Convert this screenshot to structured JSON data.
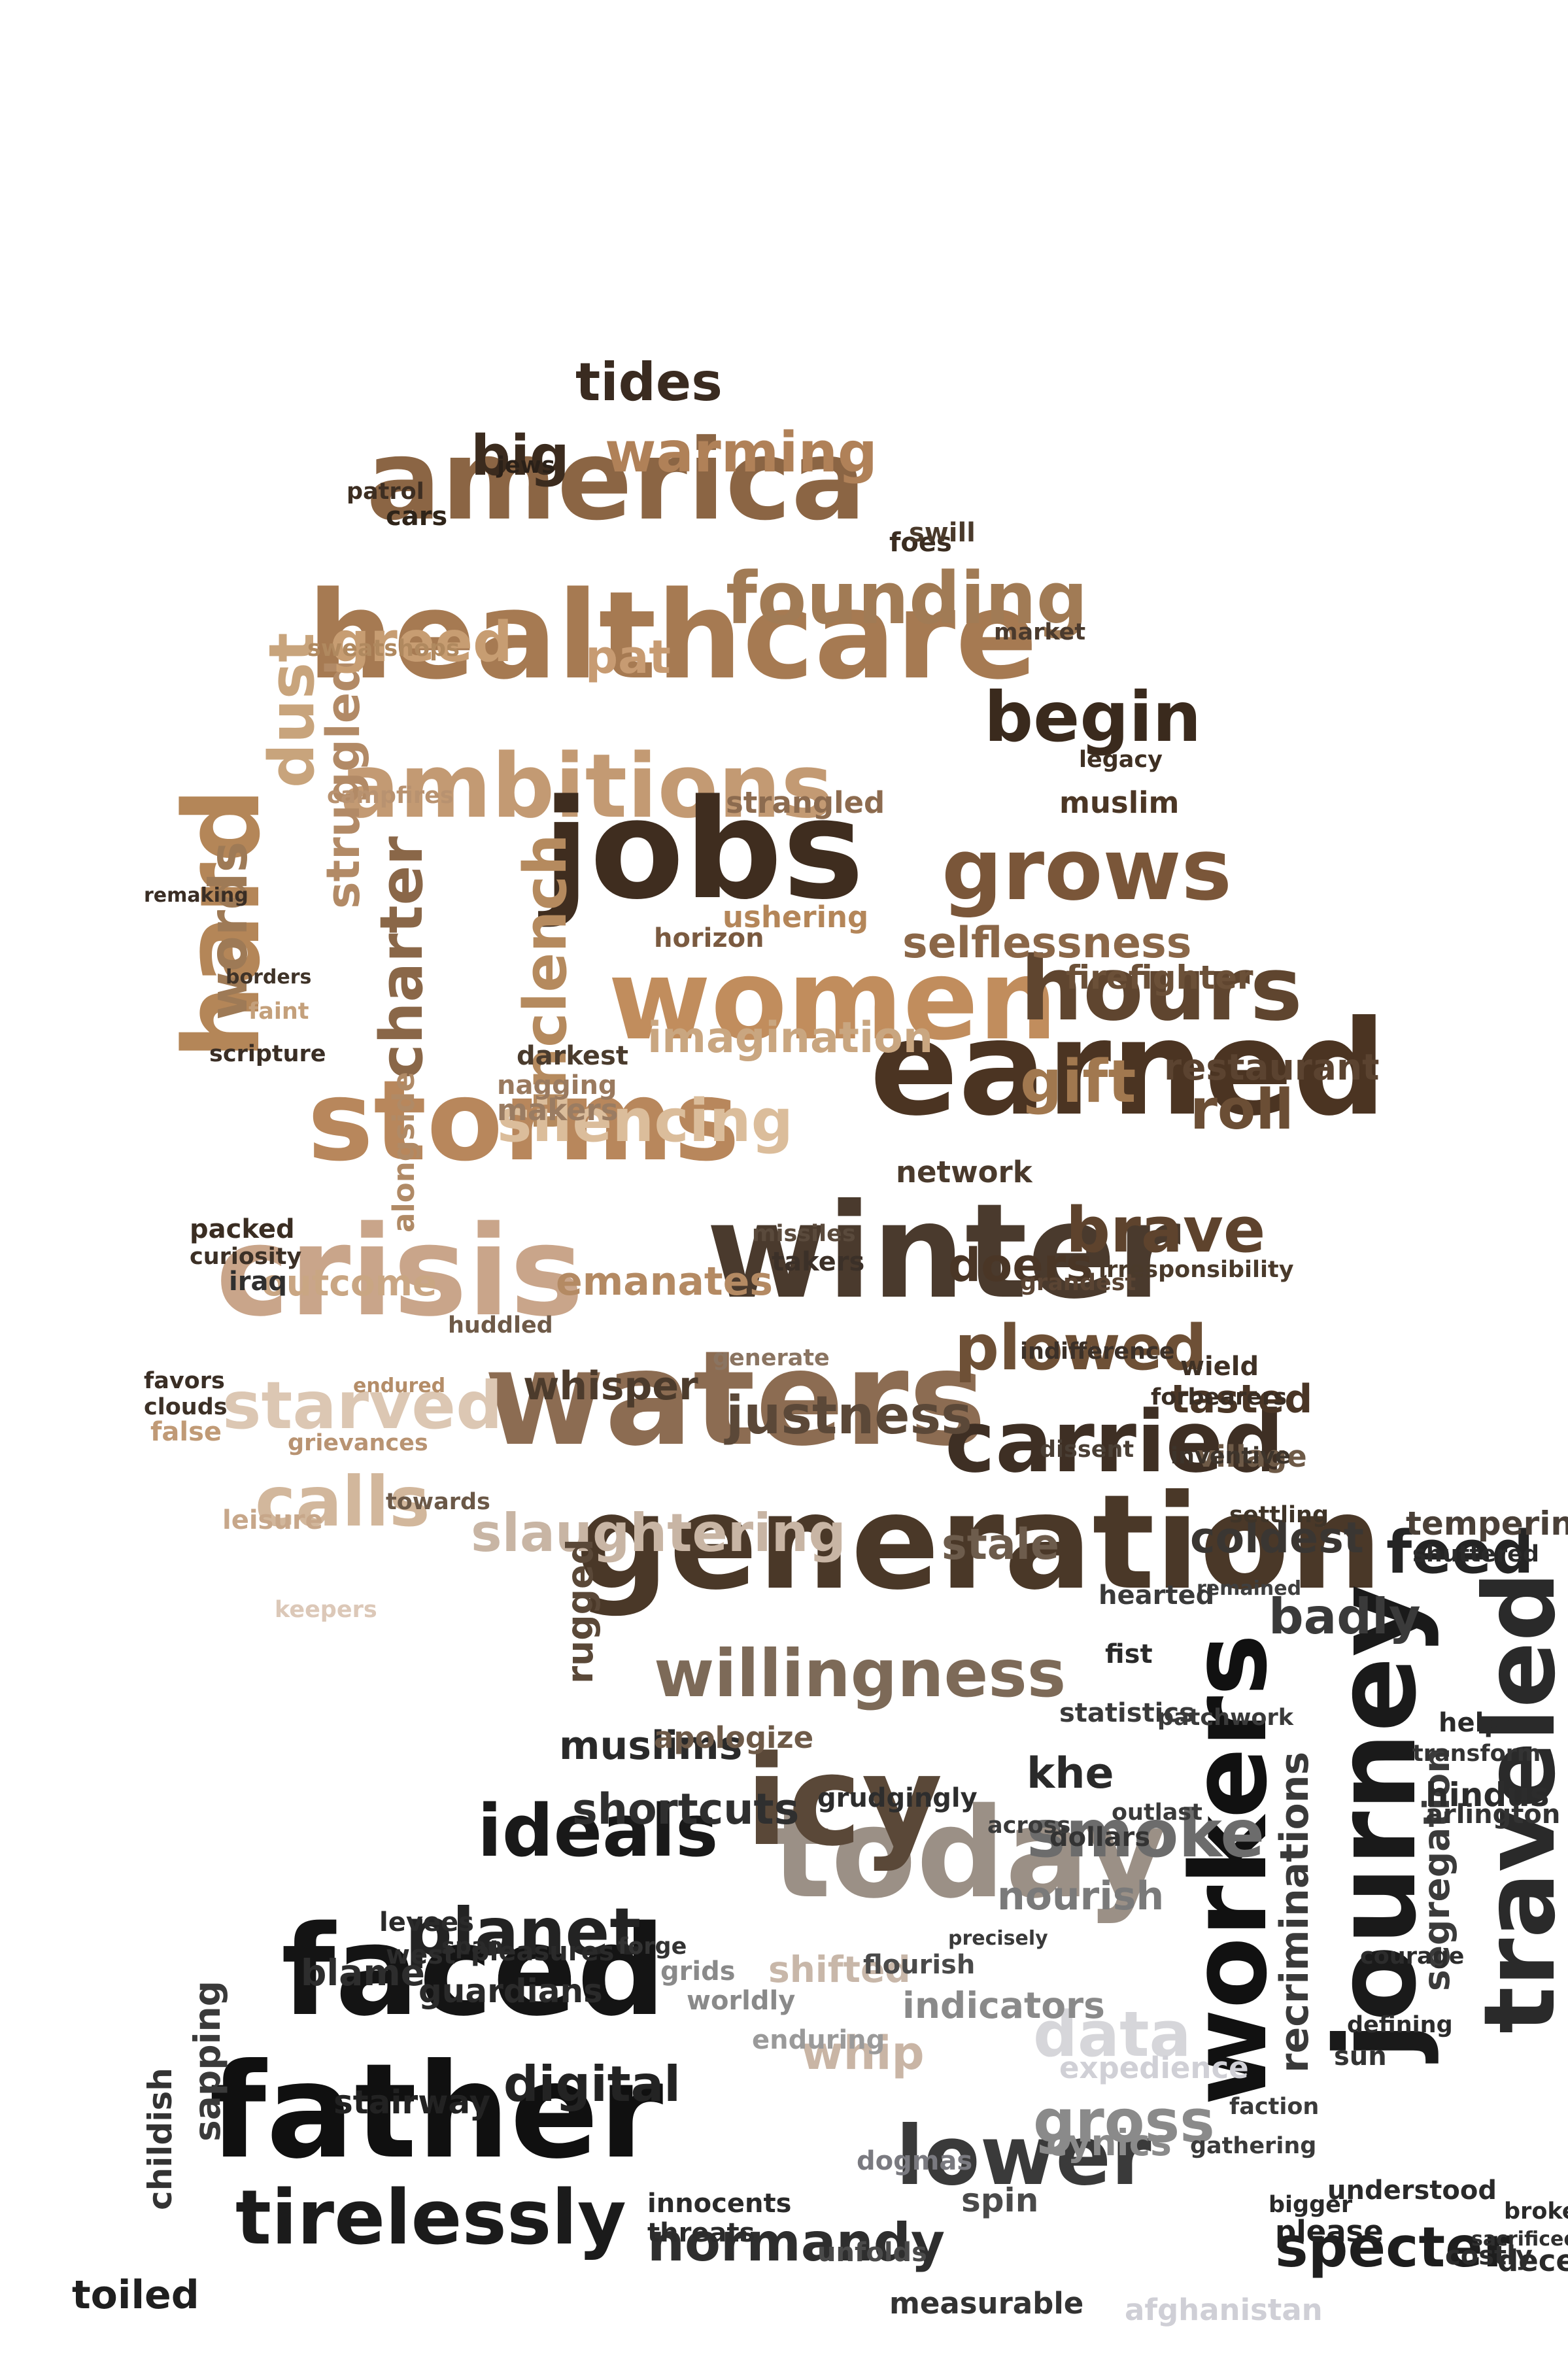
{
  "image": {
    "kind": "word cloud portrait",
    "background": "#ffffff",
    "palette": [
      "#0b0b0b",
      "#2a221b",
      "#4a3727",
      "#6a4d33",
      "#8b6a4c",
      "#b08458",
      "#c79c70",
      "#d9b896",
      "#b9b9c0"
    ]
  },
  "words": [
    {
      "text": "healthcare",
      "color": "#a67a52"
    },
    {
      "text": "america",
      "color": "#8b6544"
    },
    {
      "text": "generation",
      "color": "#4a3828"
    },
    {
      "text": "earned",
      "color": "#4b3422"
    },
    {
      "text": "storms",
      "color": "#b8875c"
    },
    {
      "text": "crisis",
      "color": "#c9a58a"
    },
    {
      "text": "winter",
      "color": "#4a3a2d"
    },
    {
      "text": "waters",
      "color": "#8c6c52"
    },
    {
      "text": "jobs",
      "color": "#3f2d1f"
    },
    {
      "text": "women",
      "color": "#c18d5d"
    },
    {
      "text": "faced",
      "color": "#141414"
    },
    {
      "text": "father",
      "color": "#101010"
    },
    {
      "text": "today",
      "color": "#9b9086"
    },
    {
      "text": "workers",
      "color": "#111111"
    },
    {
      "text": "journey",
      "color": "#1a1a1a"
    },
    {
      "text": "traveled",
      "color": "#2a2a2a"
    },
    {
      "text": "ambitions",
      "color": "#c39a73"
    },
    {
      "text": "hard",
      "color": "#b48658"
    },
    {
      "text": "icy",
      "color": "#5a4838"
    },
    {
      "text": "ideals",
      "color": "#191919"
    },
    {
      "text": "lower",
      "color": "#3a3a3a"
    },
    {
      "text": "tirelessly",
      "color": "#1b1b1b"
    },
    {
      "text": "carried",
      "color": "#3e2f24"
    },
    {
      "text": "hours",
      "color": "#5f452f"
    },
    {
      "text": "grows",
      "color": "#7a5639"
    },
    {
      "text": "founding",
      "color": "#a17b55"
    },
    {
      "text": "begin",
      "color": "#3a2a1d"
    },
    {
      "text": "willingness",
      "color": "#7d6a58"
    },
    {
      "text": "smoke",
      "color": "#6c6c6c"
    },
    {
      "text": "planet",
      "color": "#232323"
    },
    {
      "text": "plowed",
      "color": "#6e5036"
    },
    {
      "text": "brave",
      "color": "#5e432d"
    },
    {
      "text": "gift",
      "color": "#a1784f"
    },
    {
      "text": "roll",
      "color": "#6b4e35"
    },
    {
      "text": "starved",
      "color": "#dcc7b3"
    },
    {
      "text": "calls",
      "color": "#d2b79c"
    },
    {
      "text": "charter",
      "color": "#8a6748"
    },
    {
      "text": "unclench",
      "color": "#b58a5e"
    },
    {
      "text": "dust",
      "color": "#c8a47c"
    },
    {
      "text": "words",
      "color": "#9e7a56"
    },
    {
      "text": "struggled",
      "color": "#b28a66"
    },
    {
      "text": "greed",
      "color": "#c79d72"
    },
    {
      "text": "big",
      "color": "#3b2b1e"
    },
    {
      "text": "warming",
      "color": "#b08158"
    },
    {
      "text": "tides",
      "color": "#3a2b20"
    },
    {
      "text": "silencing",
      "color": "#dbbd9b"
    },
    {
      "text": "slaughtering",
      "color": "#c8b5a4"
    },
    {
      "text": "justness",
      "color": "#5b4838"
    },
    {
      "text": "whisper",
      "color": "#4c3b2c"
    },
    {
      "text": "feed",
      "color": "#242424"
    },
    {
      "text": "coldest",
      "color": "#3a3632"
    },
    {
      "text": "badly",
      "color": "#3a3a3a"
    },
    {
      "text": "stale",
      "color": "#6d5c4c"
    },
    {
      "text": "digital",
      "color": "#232323"
    },
    {
      "text": "normandy",
      "color": "#2e2e2e"
    },
    {
      "text": "specter",
      "color": "#1e1e1e"
    },
    {
      "text": "gross",
      "color": "#8a8a8a"
    },
    {
      "text": "data",
      "color": "#d6d6da"
    },
    {
      "text": "muslims",
      "color": "#2a2a2a"
    },
    {
      "text": "shortcuts",
      "color": "#2f2f2f"
    },
    {
      "text": "recriminations",
      "color": "#3a3a3a"
    },
    {
      "text": "segregation",
      "color": "#3b3b3b"
    },
    {
      "text": "selflessness",
      "color": "#8b6748"
    },
    {
      "text": "imagination",
      "color": "#c9a680"
    },
    {
      "text": "emanates",
      "color": "#b48a63"
    },
    {
      "text": "outcome",
      "color": "#c9a683"
    },
    {
      "text": "doers",
      "color": "#4a3626"
    },
    {
      "text": "firefighter",
      "color": "#6b5038"
    },
    {
      "text": "restaurant",
      "color": "#5b4330"
    },
    {
      "text": "tasted",
      "color": "#4a3626"
    },
    {
      "text": "village",
      "color": "#6e5a47"
    },
    {
      "text": "tempering",
      "color": "#4a4038"
    },
    {
      "text": "hindus",
      "color": "#2c2c2c"
    },
    {
      "text": "arlington",
      "color": "#333333"
    },
    {
      "text": "nourish",
      "color": "#7a7a7a"
    },
    {
      "text": "indicators",
      "color": "#8a8a8a"
    },
    {
      "text": "expedience",
      "color": "#d0d0d6"
    },
    {
      "text": "cynics",
      "color": "#8a8a8a"
    },
    {
      "text": "dogmas",
      "color": "#7a7a80"
    },
    {
      "text": "afghanistan",
      "color": "#cfcfd6"
    },
    {
      "text": "measurable",
      "color": "#333333"
    },
    {
      "text": "innocents",
      "color": "#2a2a2a"
    },
    {
      "text": "threats",
      "color": "#2b2b2b"
    },
    {
      "text": "guardians",
      "color": "#2a2a2a"
    },
    {
      "text": "blame",
      "color": "#2d2d2d"
    },
    {
      "text": "stairway",
      "color": "#222222"
    },
    {
      "text": "sapping",
      "color": "#3a3a3a"
    },
    {
      "text": "childish",
      "color": "#333333"
    },
    {
      "text": "toiled",
      "color": "#1f1f1f"
    },
    {
      "text": "whip",
      "color": "#c9b5a5"
    },
    {
      "text": "shifted",
      "color": "#c8b7a9"
    },
    {
      "text": "apologize",
      "color": "#6e5a48"
    },
    {
      "text": "rugged",
      "color": "#5a4838"
    },
    {
      "text": "khe",
      "color": "#2a2a2a"
    },
    {
      "text": "grudgingly",
      "color": "#2d2d2d"
    },
    {
      "text": "spin",
      "color": "#4a4a4a"
    },
    {
      "text": "unfolds",
      "color": "#4a4a4a"
    },
    {
      "text": "patrol",
      "color": "#3d2e22"
    },
    {
      "text": "cars",
      "color": "#2f2419"
    },
    {
      "text": "jews",
      "color": "#2a2018"
    },
    {
      "text": "foes",
      "color": "#3a2c20"
    },
    {
      "text": "swill",
      "color": "#4a3a2b"
    },
    {
      "text": "market",
      "color": "#4a3a2d"
    },
    {
      "text": "legacy",
      "color": "#3f3023"
    },
    {
      "text": "muslim",
      "color": "#4b3625"
    },
    {
      "text": "strangled",
      "color": "#8c6b4f"
    },
    {
      "text": "horizon",
      "color": "#7a5a40"
    },
    {
      "text": "ushering",
      "color": "#b48659"
    },
    {
      "text": "alongside",
      "color": "#b08a66"
    },
    {
      "text": "sweatshops",
      "color": "#b0895f"
    },
    {
      "text": "pat",
      "color": "#c79b72"
    },
    {
      "text": "campfires",
      "color": "#b89270"
    },
    {
      "text": "makers",
      "color": "#9a7c62"
    },
    {
      "text": "nagging",
      "color": "#9a7a5f"
    },
    {
      "text": "darkest",
      "color": "#4a3b2d"
    },
    {
      "text": "network",
      "color": "#4a3a2c"
    },
    {
      "text": "curiosity",
      "color": "#3c3026"
    },
    {
      "text": "packed",
      "color": "#3a2d22"
    },
    {
      "text": "iraq",
      "color": "#2f2f2f"
    },
    {
      "text": "missiles",
      "color": "#5a4a3c"
    },
    {
      "text": "takers",
      "color": "#3b3028"
    },
    {
      "text": "grandest",
      "color": "#5a4433"
    },
    {
      "text": "irresponsibility",
      "color": "#4a3a2b"
    },
    {
      "text": "indifference",
      "color": "#3b3028"
    },
    {
      "text": "wield",
      "color": "#3f3125"
    },
    {
      "text": "forbearers",
      "color": "#3a2e24"
    },
    {
      "text": "inventive",
      "color": "#3d342b"
    },
    {
      "text": "dissent",
      "color": "#4a3f35"
    },
    {
      "text": "settling",
      "color": "#3f3428"
    },
    {
      "text": "shuttered",
      "color": "#2a2a2a"
    },
    {
      "text": "generate",
      "color": "#8a7461"
    },
    {
      "text": "grievances",
      "color": "#b89372"
    },
    {
      "text": "huddled",
      "color": "#6e5a48"
    },
    {
      "text": "endured",
      "color": "#b48d68"
    },
    {
      "text": "favors",
      "color": "#3a2e25"
    },
    {
      "text": "clouds",
      "color": "#3d3127"
    },
    {
      "text": "false",
      "color": "#c09a76"
    },
    {
      "text": "leisure",
      "color": "#c7a78a"
    },
    {
      "text": "towards",
      "color": "#6b5847"
    },
    {
      "text": "scripture",
      "color": "#3a2e25"
    },
    {
      "text": "faint",
      "color": "#c4a07b"
    },
    {
      "text": "borders",
      "color": "#3f3328"
    },
    {
      "text": "remaking",
      "color": "#3a2e25"
    },
    {
      "text": "slaughtering2",
      "color": "#c8b5a4"
    },
    {
      "text": "keepers",
      "color": "#dcc8b8"
    },
    {
      "text": "levees",
      "color": "#2a2a2a"
    },
    {
      "text": "span",
      "color": "#2a2a2a"
    },
    {
      "text": "west",
      "color": "#2c2c2c"
    },
    {
      "text": "pleasures",
      "color": "#2a2a2a"
    },
    {
      "text": "forge",
      "color": "#333333"
    },
    {
      "text": "grids",
      "color": "#8a8a8a"
    },
    {
      "text": "worldly",
      "color": "#8a8a8a"
    },
    {
      "text": "enduring",
      "color": "#9a9a9a"
    },
    {
      "text": "flourish",
      "color": "#4a4a4a"
    },
    {
      "text": "precisely",
      "color": "#3a3a3a"
    },
    {
      "text": "dollars",
      "color": "#333333"
    },
    {
      "text": "across",
      "color": "#3a3a3a"
    },
    {
      "text": "outlast",
      "color": "#3a3a3a"
    },
    {
      "text": "fist",
      "color": "#2a2a2a"
    },
    {
      "text": "helps",
      "color": "#2a2a2a"
    },
    {
      "text": "transform",
      "color": "#333333"
    },
    {
      "text": "statistics",
      "color": "#3a3a3a"
    },
    {
      "text": "patchwork",
      "color": "#3a3a3a"
    },
    {
      "text": "remained",
      "color": "#3f3f3f"
    },
    {
      "text": "hearted",
      "color": "#3a3a3a"
    },
    {
      "text": "bigger",
      "color": "#2a2a2a"
    },
    {
      "text": "please",
      "color": "#222222"
    },
    {
      "text": "understood",
      "color": "#2a2a2a"
    },
    {
      "text": "sacrificed",
      "color": "#2f2f2f"
    },
    {
      "text": "courage",
      "color": "#2c2c2c"
    },
    {
      "text": "defining",
      "color": "#2c2c2c"
    },
    {
      "text": "faction",
      "color": "#3a3a3a"
    },
    {
      "text": "gathering",
      "color": "#3a3a3a"
    },
    {
      "text": "deceit",
      "color": "#2a2a2a"
    },
    {
      "text": "costly",
      "color": "#2d2d2d"
    },
    {
      "text": "broken",
      "color": "#2a2a2a"
    },
    {
      "text": "sun",
      "color": "#333333"
    }
  ]
}
